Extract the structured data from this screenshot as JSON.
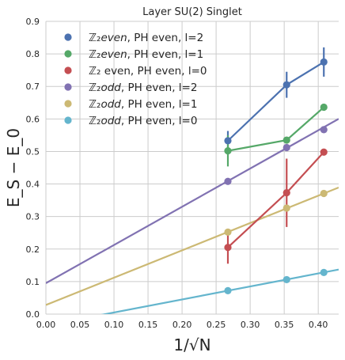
{
  "chart_data": {
    "type": "scatter",
    "title": "Layer SU(2) Singlet",
    "xlabel": "1/√N",
    "ylabel": "E_S − E_0",
    "xlim": [
      0.0,
      0.43
    ],
    "ylim": [
      0.0,
      0.9
    ],
    "x_ticks": [
      "0.00",
      "0.05",
      "0.10",
      "0.15",
      "0.20",
      "0.25",
      "0.30",
      "0.35",
      "0.40"
    ],
    "y_ticks": [
      "0.0",
      "0.1",
      "0.2",
      "0.3",
      "0.4",
      "0.5",
      "0.6",
      "0.7",
      "0.8",
      "0.9"
    ],
    "grid": true,
    "legend_position": "top-left",
    "series": [
      {
        "name": "ℤ₂even, PH even, l=2",
        "legend_prefix": "ℤ₂",
        "legend_emph": "even",
        "legend_rest": ", PH even, l=2",
        "color": "#4c72b0",
        "x": [
          0.2673,
          0.3536,
          0.4082
        ],
        "y": [
          0.533,
          0.705,
          0.775
        ],
        "yerr": [
          0.03,
          0.04,
          0.045
        ],
        "fit": null
      },
      {
        "name": "ℤ₂even, PH even, l=1",
        "legend_prefix": "ℤ₂",
        "legend_emph": "even",
        "legend_rest": ", PH even, l=1",
        "color": "#55a868",
        "x": [
          0.2673,
          0.3536,
          0.4082
        ],
        "y": [
          0.502,
          0.535,
          0.636
        ],
        "yerr": [
          0.048,
          0.0,
          0.0
        ],
        "fit": null
      },
      {
        "name": "ℤ₂ even, PH even, l=0",
        "legend_prefix": "ℤ₂",
        "legend_emph": "",
        "legend_rest": " even, PH even, l=0",
        "color": "#c44e52",
        "x": [
          0.2673,
          0.3536,
          0.4082
        ],
        "y": [
          0.205,
          0.373,
          0.498
        ],
        "yerr": [
          0.05,
          0.105,
          0.0
        ],
        "fit": null
      },
      {
        "name": "ℤ₂odd, PH even, l=2",
        "legend_prefix": "ℤ₂",
        "legend_emph": "odd",
        "legend_rest": ", PH even, l=2",
        "color": "#8172b2",
        "x": [
          0.2673,
          0.3536,
          0.4082
        ],
        "y": [
          0.408,
          0.512,
          0.567
        ],
        "yerr": [
          0.0,
          0.0,
          0.0
        ],
        "fit": {
          "intercept": 0.095,
          "slope": 1.175
        }
      },
      {
        "name": "ℤ₂odd, PH even, l=1",
        "legend_prefix": "ℤ₂",
        "legend_emph": "odd",
        "legend_rest": ", PH even, l=1",
        "color": "#ccb974",
        "x": [
          0.2673,
          0.3536,
          0.4082
        ],
        "y": [
          0.252,
          0.326,
          0.371
        ],
        "yerr": [
          0.0,
          0.0,
          0.0
        ],
        "fit": {
          "intercept": 0.028,
          "slope": 0.84
        }
      },
      {
        "name": "ℤ₂odd, PH even, l=0",
        "legend_prefix": "ℤ₂",
        "legend_emph": "odd",
        "legend_rest": ", PH even, l=0",
        "color": "#64b5cd",
        "x": [
          0.2673,
          0.3536,
          0.4082
        ],
        "y": [
          0.072,
          0.106,
          0.128
        ],
        "yerr": [
          0.0,
          0.0,
          0.0
        ],
        "fit": {
          "intercept": -0.035,
          "slope": 0.4
        }
      }
    ]
  }
}
